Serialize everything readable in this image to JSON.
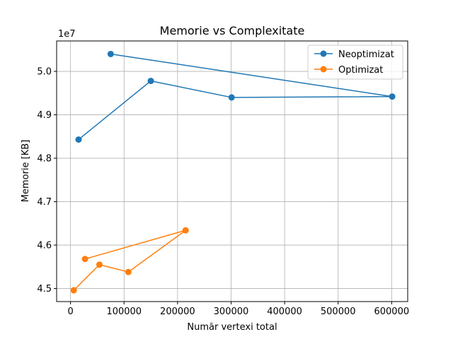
{
  "chart_data": {
    "type": "line",
    "title": "Memorie vs Complexitate",
    "xlabel": "Număr vertexi total",
    "ylabel": "Memorie [KB]",
    "y_offset_label": "1e7",
    "xlim": [
      -26000,
      630000
    ],
    "ylim": [
      44700000,
      50700000
    ],
    "xticks": [
      0,
      100000,
      200000,
      300000,
      400000,
      500000,
      600000
    ],
    "xtick_labels": [
      "0",
      "100000",
      "200000",
      "300000",
      "400000",
      "500000",
      "600000"
    ],
    "yticks": [
      45000000,
      46000000,
      47000000,
      48000000,
      49000000,
      50000000
    ],
    "ytick_labels": [
      "4.5",
      "4.6",
      "4.7",
      "4.8",
      "4.9",
      "5.0"
    ],
    "grid": true,
    "legend_position": "top-right",
    "series": [
      {
        "name": "Neoptimizat",
        "color": "#1f77b4",
        "points": [
          {
            "x": 15000,
            "y": 48430000
          },
          {
            "x": 150000,
            "y": 49780000
          },
          {
            "x": 301000,
            "y": 49400000
          },
          {
            "x": 601000,
            "y": 49420000
          },
          {
            "x": 75000,
            "y": 50400000
          }
        ]
      },
      {
        "name": "Optimizat",
        "color": "#ff7f0e",
        "points": [
          {
            "x": 6000,
            "y": 44960000
          },
          {
            "x": 54000,
            "y": 45550000
          },
          {
            "x": 108000,
            "y": 45380000
          },
          {
            "x": 215000,
            "y": 46340000
          },
          {
            "x": 27000,
            "y": 45680000
          }
        ]
      }
    ]
  }
}
